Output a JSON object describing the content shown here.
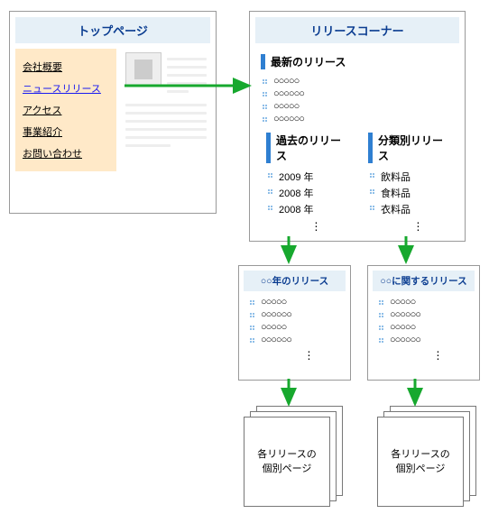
{
  "colors": {
    "header_bg": "#e6f0f7",
    "header_text": "#0b3d91",
    "nav_bg": "#ffe9c8",
    "accent_bar": "#2f7fd1",
    "arrow": "#17a82e",
    "link_active": "#1a1af0",
    "border": "#999999"
  },
  "top_page": {
    "title": "トップページ",
    "nav": [
      {
        "label": "会社概要",
        "active": false
      },
      {
        "label": "ニュースリリース",
        "active": true
      },
      {
        "label": "アクセス",
        "active": false
      },
      {
        "label": "事業紹介",
        "active": false
      },
      {
        "label": "お問い合わせ",
        "active": false
      }
    ]
  },
  "release_corner": {
    "title": "リリースコーナー",
    "latest": {
      "heading": "最新のリリース",
      "items": [
        "○○○○○",
        "○○○○○○",
        "○○○○○",
        "○○○○○○"
      ]
    },
    "past": {
      "heading": "過去のリリース",
      "items": [
        "2009 年",
        "2008 年",
        "2008 年"
      ]
    },
    "category": {
      "heading": "分類別リリース",
      "items": [
        "飲料品",
        "食料品",
        "衣料品"
      ]
    }
  },
  "detail_year": {
    "title": "○○年のリリース",
    "items": [
      "○○○○○",
      "○○○○○○",
      "○○○○○",
      "○○○○○○"
    ]
  },
  "detail_category": {
    "title": "○○に関するリリース",
    "items": [
      "○○○○○",
      "○○○○○○",
      "○○○○○",
      "○○○○○○"
    ]
  },
  "stack_label": "各リリースの\n個別ページ",
  "diagram": {
    "type": "flowchart",
    "arrow_color": "#17a82e",
    "arrow_width": 3
  }
}
